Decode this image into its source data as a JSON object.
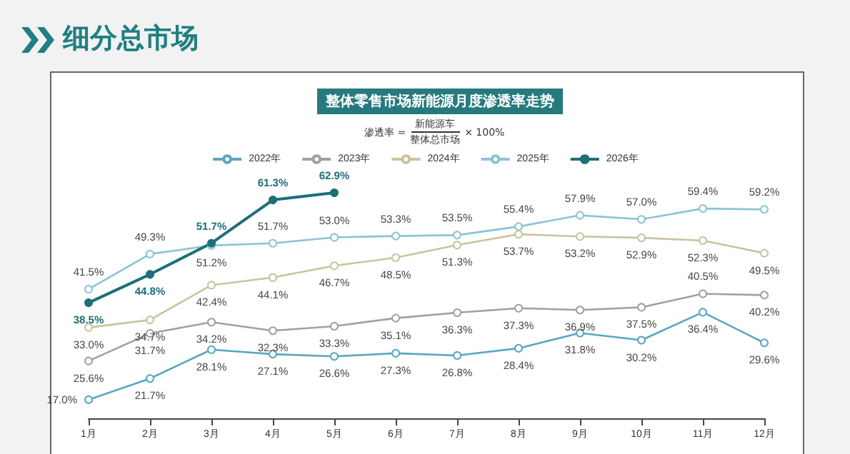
{
  "chart_data": {
    "type": "line",
    "title": "细分总市场",
    "subtitle": "整体零售市场新能源月度渗透率走势",
    "annotations": [
      "渗透率 =",
      "新能源车",
      "整体总市场",
      "× 100%"
    ],
    "categories": [
      "1月",
      "2月",
      "3月",
      "4月",
      "5月",
      "6月",
      "7月",
      "8月",
      "9月",
      "10月",
      "11月",
      "12月"
    ],
    "series": [
      {
        "name": "2022年",
        "color": "#5aa6c2",
        "values": [
          17.0,
          21.7,
          28.1,
          27.1,
          26.6,
          27.3,
          26.8,
          28.4,
          31.8,
          30.2,
          36.4,
          29.6
        ],
        "value_labels": [
          "17.0%",
          "21.7%",
          "28.1%",
          "27.1%",
          "26.6%",
          "27.3%",
          "26.8%",
          "28.4%",
          "31.8%",
          "30.2%",
          "36.4%",
          "29.6%"
        ]
      },
      {
        "name": "2023年",
        "color": "#a0a0a0",
        "values": [
          25.6,
          31.7,
          34.2,
          32.3,
          33.3,
          35.1,
          36.3,
          37.3,
          36.9,
          37.5,
          40.5,
          40.2
        ],
        "value_labels": [
          "25.6%",
          "31.7%",
          "34.2%",
          "32.3%",
          "33.3%",
          "35.1%",
          "36.3%",
          "37.3%",
          "36.9%",
          "37.5%",
          "40.5%",
          "40.2%"
        ]
      },
      {
        "name": "2024年",
        "color": "#c9c49c",
        "values": [
          33.0,
          34.7,
          42.4,
          44.1,
          46.7,
          48.5,
          51.3,
          53.7,
          53.2,
          52.9,
          52.3,
          49.5
        ],
        "value_labels": [
          "33.0%",
          "34.7%",
          "42.4%",
          "44.1%",
          "46.7%",
          "48.5%",
          "51.3%",
          "53.7%",
          "53.2%",
          "52.9%",
          "52.3%",
          "49.5%"
        ]
      },
      {
        "name": "2025年",
        "color": "#8cc3d5",
        "values": [
          41.5,
          49.3,
          51.2,
          51.7,
          53.0,
          53.3,
          53.5,
          55.4,
          57.9,
          57.0,
          59.4,
          59.2
        ],
        "value_labels": [
          "41.5%",
          "49.3%",
          "51.2%",
          "51.7%",
          "53.0%",
          "53.3%",
          "53.5%",
          "55.4%",
          "57.9%",
          "57.0%",
          "59.4%",
          "59.2%"
        ]
      },
      {
        "name": "2026年",
        "color": "#1d6f78",
        "values": [
          38.5,
          44.8,
          51.7,
          61.3,
          62.9,
          null,
          null,
          null,
          null,
          null,
          null,
          null
        ],
        "value_labels": [
          "38.5%",
          "44.8%",
          "51.7%",
          "61.3%",
          "62.9%",
          null,
          null,
          null,
          null,
          null,
          null,
          null
        ]
      }
    ],
    "grid": false,
    "legend": "top",
    "marker": "circle",
    "line_style": "solid"
  }
}
